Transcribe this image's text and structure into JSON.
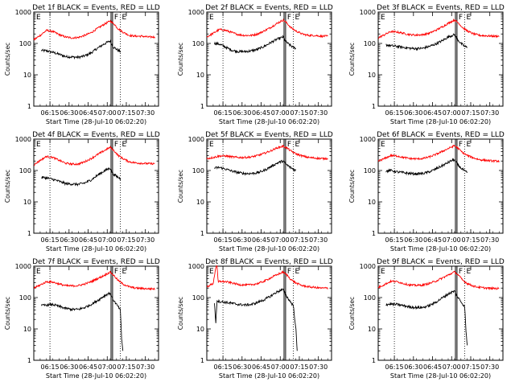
{
  "figure": {
    "xtick_labels": [
      "06:15",
      "06:30",
      "06:45",
      "07:00",
      "07:15",
      "07:30"
    ],
    "xlabel_prefix": "Start Time (",
    "start_time": "28-Jul-10 06:02:20",
    "xlabel_suffix": ")",
    "ylabel": "Counts/sec",
    "ytick_labels": [
      "1",
      "10",
      "100",
      "1000"
    ],
    "marker_F": "F",
    "marker_E": "E",
    "events_color": "#000000",
    "lld_color": "#ff0000"
  },
  "chart_data": [
    {
      "type": "line",
      "title": "Det 1f BLACK = Events, RED = LLD",
      "scale": "log",
      "ylim": [
        1,
        1000
      ],
      "xlim_minutes": [
        0,
        98
      ],
      "dotted_lines_min": [
        12.7,
        68
      ],
      "vertical_lines_min": [
        60.7,
        61.9
      ],
      "series": [
        {
          "key": "events",
          "x": [
            6,
            10,
            15,
            20,
            25,
            30,
            35,
            40,
            45,
            50,
            55,
            58,
            60,
            62,
            65,
            68
          ],
          "y": [
            60,
            58,
            52,
            45,
            38,
            37,
            36,
            40,
            50,
            70,
            95,
            110,
            120,
            80,
            65,
            55
          ]
        },
        {
          "key": "lld",
          "x": [
            0,
            5,
            10,
            15,
            20,
            25,
            30,
            35,
            40,
            45,
            50,
            55,
            60,
            63,
            66,
            70,
            75,
            80,
            85,
            90,
            95
          ],
          "y": [
            130,
            180,
            260,
            240,
            190,
            160,
            150,
            155,
            180,
            220,
            300,
            400,
            520,
            420,
            300,
            230,
            180,
            170,
            170,
            160,
            160
          ]
        }
      ]
    },
    {
      "type": "line",
      "title": "Det 2f BLACK = Events, RED = LLD",
      "scale": "log",
      "ylim": [
        1,
        1000
      ],
      "xlim_minutes": [
        0,
        98
      ],
      "dotted_lines_min": [
        12.7,
        68
      ],
      "vertical_lines_min": [
        60.7,
        61.9
      ],
      "series": [
        {
          "key": "events",
          "x": [
            6,
            10,
            15,
            20,
            25,
            30,
            35,
            40,
            45,
            50,
            55,
            58,
            60,
            62,
            65,
            68,
            70
          ],
          "y": [
            100,
            95,
            75,
            60,
            55,
            55,
            58,
            65,
            80,
            105,
            135,
            150,
            160,
            115,
            90,
            75,
            70
          ]
        },
        {
          "key": "lld",
          "x": [
            0,
            5,
            10,
            15,
            20,
            25,
            30,
            35,
            40,
            45,
            50,
            55,
            60,
            63,
            66,
            70,
            75,
            80,
            85,
            90,
            95
          ],
          "y": [
            160,
            210,
            280,
            260,
            220,
            190,
            180,
            180,
            200,
            250,
            320,
            430,
            560,
            440,
            320,
            250,
            200,
            180,
            180,
            170,
            170
          ]
        }
      ]
    },
    {
      "type": "line",
      "title": "Det 3f BLACK = Events, RED = LLD",
      "scale": "log",
      "ylim": [
        1,
        1000
      ],
      "xlim_minutes": [
        0,
        98
      ],
      "dotted_lines_min": [
        12.7,
        68
      ],
      "vertical_lines_min": [
        60.7,
        61.9
      ],
      "series": [
        {
          "key": "events",
          "x": [
            6,
            10,
            15,
            20,
            25,
            30,
            35,
            40,
            45,
            50,
            55,
            58,
            60,
            62,
            65,
            68,
            70
          ],
          "y": [
            90,
            85,
            80,
            75,
            70,
            68,
            70,
            80,
            95,
            120,
            160,
            180,
            190,
            140,
            100,
            80,
            75
          ]
        },
        {
          "key": "lld",
          "x": [
            0,
            5,
            10,
            15,
            20,
            25,
            30,
            35,
            40,
            45,
            50,
            55,
            60,
            63,
            66,
            70,
            75,
            80,
            85,
            90,
            95
          ],
          "y": [
            150,
            190,
            240,
            230,
            210,
            190,
            185,
            190,
            210,
            260,
            330,
            440,
            560,
            450,
            330,
            250,
            200,
            180,
            175,
            170,
            170
          ]
        }
      ]
    },
    {
      "type": "line",
      "title": "Det 4f BLACK = Events, RED = LLD",
      "scale": "log",
      "ylim": [
        1,
        1000
      ],
      "xlim_minutes": [
        0,
        98
      ],
      "dotted_lines_min": [
        12.7,
        68
      ],
      "vertical_lines_min": [
        60.7,
        61.9
      ],
      "series": [
        {
          "key": "events",
          "x": [
            6,
            10,
            15,
            20,
            25,
            30,
            35,
            40,
            45,
            50,
            55,
            58,
            60,
            62,
            65,
            68
          ],
          "y": [
            60,
            58,
            52,
            45,
            38,
            37,
            36,
            40,
            50,
            70,
            95,
            110,
            120,
            80,
            65,
            55
          ]
        },
        {
          "key": "lld",
          "x": [
            0,
            5,
            10,
            15,
            20,
            25,
            30,
            35,
            40,
            45,
            50,
            55,
            60,
            63,
            66,
            70,
            75,
            80,
            85,
            90,
            95
          ],
          "y": [
            150,
            210,
            280,
            260,
            210,
            170,
            160,
            160,
            190,
            240,
            320,
            420,
            550,
            430,
            310,
            240,
            190,
            175,
            170,
            165,
            165
          ]
        }
      ]
    },
    {
      "type": "line",
      "title": "Det 5f BLACK = Events, RED = LLD",
      "scale": "log",
      "ylim": [
        1,
        1000
      ],
      "xlim_minutes": [
        0,
        98
      ],
      "dotted_lines_min": [
        12.7,
        68
      ],
      "vertical_lines_min": [
        60.7,
        61.9
      ],
      "series": [
        {
          "key": "events",
          "x": [
            6,
            10,
            15,
            20,
            25,
            30,
            35,
            40,
            45,
            50,
            55,
            58,
            60,
            62,
            65,
            68,
            70
          ],
          "y": [
            120,
            125,
            110,
            95,
            85,
            80,
            80,
            85,
            100,
            130,
            170,
            190,
            200,
            160,
            130,
            110,
            100
          ]
        },
        {
          "key": "lld",
          "x": [
            0,
            5,
            10,
            15,
            20,
            25,
            30,
            35,
            40,
            45,
            50,
            55,
            60,
            63,
            66,
            70,
            75,
            80,
            85,
            90,
            95
          ],
          "y": [
            240,
            260,
            290,
            290,
            270,
            260,
            260,
            270,
            300,
            350,
            420,
            520,
            600,
            520,
            420,
            340,
            290,
            260,
            250,
            240,
            240
          ]
        }
      ]
    },
    {
      "type": "line",
      "title": "Det 6f BLACK = Events, RED = LLD",
      "scale": "log",
      "ylim": [
        1,
        1000
      ],
      "xlim_minutes": [
        0,
        98
      ],
      "dotted_lines_min": [
        12.7,
        68
      ],
      "vertical_lines_min": [
        60.7,
        61.9
      ],
      "series": [
        {
          "key": "events",
          "x": [
            6,
            10,
            15,
            20,
            25,
            30,
            35,
            40,
            45,
            50,
            55,
            58,
            60,
            62,
            65,
            68,
            70
          ],
          "y": [
            95,
            100,
            90,
            85,
            80,
            78,
            80,
            90,
            110,
            140,
            180,
            210,
            220,
            160,
            120,
            95,
            85
          ]
        },
        {
          "key": "lld",
          "x": [
            0,
            5,
            10,
            15,
            20,
            25,
            30,
            35,
            40,
            45,
            50,
            55,
            60,
            63,
            66,
            70,
            75,
            80,
            85,
            90,
            95
          ],
          "y": [
            200,
            240,
            300,
            290,
            260,
            240,
            235,
            240,
            270,
            320,
            400,
            500,
            620,
            500,
            380,
            300,
            250,
            220,
            210,
            200,
            200
          ]
        }
      ]
    },
    {
      "type": "line",
      "title": "Det 7f BLACK = Events, RED = LLD",
      "scale": "log",
      "ylim": [
        1,
        1000
      ],
      "xlim_minutes": [
        0,
        98
      ],
      "dotted_lines_min": [
        12.7,
        68
      ],
      "vertical_lines_min": [
        60.7,
        61.9
      ],
      "series": [
        {
          "key": "events",
          "x": [
            6,
            10,
            15,
            20,
            25,
            30,
            35,
            40,
            45,
            50,
            55,
            58,
            60,
            62,
            65,
            68,
            69,
            70
          ],
          "y": [
            55,
            58,
            60,
            52,
            45,
            42,
            42,
            48,
            60,
            80,
            110,
            130,
            140,
            90,
            60,
            40,
            5,
            2
          ]
        },
        {
          "key": "lld",
          "x": [
            0,
            5,
            10,
            15,
            20,
            25,
            30,
            35,
            40,
            45,
            50,
            55,
            60,
            63,
            66,
            70,
            75,
            80,
            85,
            90,
            95
          ],
          "y": [
            200,
            250,
            320,
            310,
            270,
            240,
            235,
            240,
            270,
            320,
            400,
            500,
            650,
            500,
            360,
            270,
            220,
            200,
            195,
            190,
            190
          ]
        }
      ]
    },
    {
      "type": "line",
      "title": "Det 8f BLACK = Events, RED = LLD",
      "scale": "log",
      "ylim": [
        1,
        1000
      ],
      "xlim_minutes": [
        0,
        98
      ],
      "dotted_lines_min": [
        12.7,
        68
      ],
      "vertical_lines_min": [
        60.7,
        61.9
      ],
      "series": [
        {
          "key": "events",
          "x": [
            6,
            7,
            8,
            10,
            15,
            20,
            25,
            30,
            35,
            40,
            45,
            50,
            55,
            58,
            60,
            62,
            65,
            68,
            70,
            71
          ],
          "y": [
            70,
            15,
            80,
            75,
            70,
            65,
            60,
            58,
            60,
            70,
            85,
            110,
            150,
            170,
            180,
            120,
            80,
            55,
            10,
            2
          ]
        },
        {
          "key": "lld",
          "x": [
            0,
            5,
            7,
            8,
            9,
            10,
            15,
            20,
            25,
            30,
            35,
            40,
            45,
            50,
            55,
            60,
            63,
            66,
            70,
            75,
            80,
            85,
            90,
            95
          ],
          "y": [
            220,
            280,
            900,
            1000,
            300,
            330,
            320,
            290,
            260,
            250,
            255,
            280,
            330,
            420,
            530,
            650,
            520,
            380,
            290,
            240,
            220,
            210,
            200,
            200
          ]
        }
      ]
    },
    {
      "type": "line",
      "title": "Det 9f BLACK = Events, RED = LLD",
      "scale": "log",
      "ylim": [
        1,
        1000
      ],
      "xlim_minutes": [
        0,
        98
      ],
      "dotted_lines_min": [
        12.7,
        68
      ],
      "vertical_lines_min": [
        60.7,
        61.9
      ],
      "series": [
        {
          "key": "events",
          "x": [
            6,
            10,
            15,
            20,
            25,
            30,
            35,
            40,
            45,
            50,
            55,
            58,
            60,
            62,
            65,
            68,
            69,
            70
          ],
          "y": [
            60,
            62,
            60,
            55,
            50,
            48,
            48,
            55,
            70,
            95,
            130,
            150,
            160,
            110,
            75,
            50,
            8,
            3
          ]
        },
        {
          "key": "lld",
          "x": [
            0,
            5,
            10,
            15,
            20,
            25,
            30,
            35,
            40,
            45,
            50,
            55,
            60,
            63,
            66,
            70,
            75,
            80,
            85,
            90,
            95
          ],
          "y": [
            210,
            260,
            330,
            320,
            280,
            250,
            245,
            250,
            280,
            330,
            410,
            520,
            660,
            520,
            370,
            280,
            230,
            210,
            200,
            195,
            195
          ]
        }
      ]
    }
  ]
}
